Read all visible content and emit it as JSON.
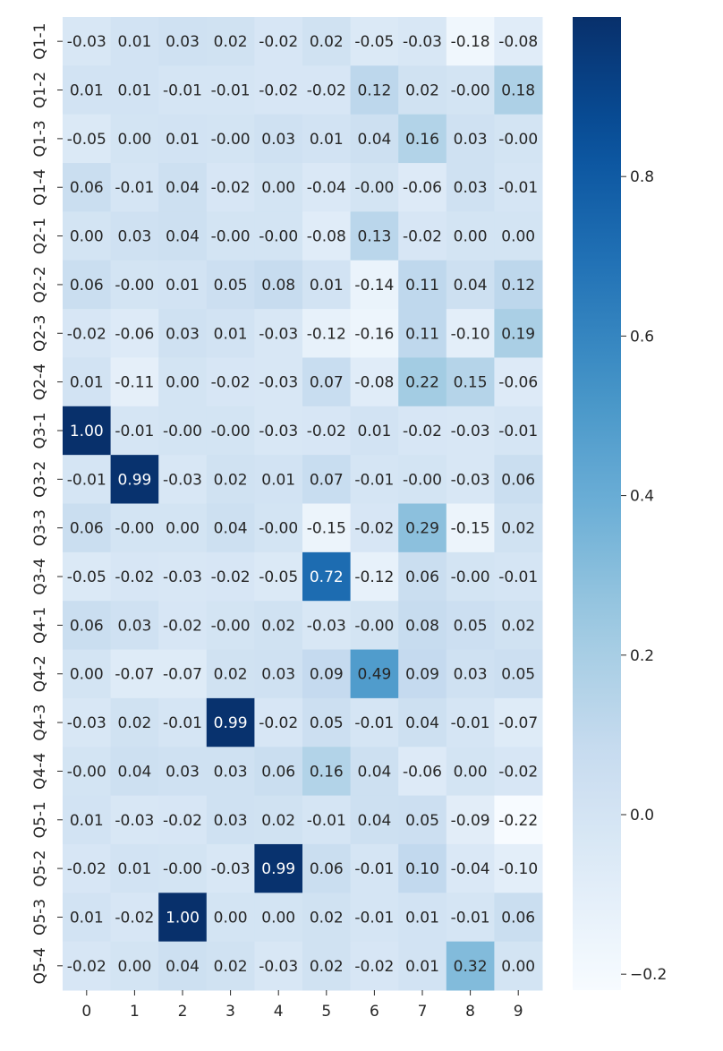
{
  "chart_data": {
    "type": "heatmap",
    "title": "",
    "xlabel": "",
    "ylabel": "",
    "x_categories": [
      "0",
      "1",
      "2",
      "3",
      "4",
      "5",
      "6",
      "7",
      "8",
      "9"
    ],
    "y_categories": [
      "Q1-1",
      "Q1-2",
      "Q1-3",
      "Q1-4",
      "Q2-1",
      "Q2-2",
      "Q2-3",
      "Q2-4",
      "Q3-1",
      "Q3-2",
      "Q3-3",
      "Q3-4",
      "Q4-1",
      "Q4-2",
      "Q4-3",
      "Q4-4",
      "Q5-1",
      "Q5-2",
      "Q5-3",
      "Q5-4"
    ],
    "values": [
      [
        -0.03,
        0.01,
        0.03,
        0.02,
        -0.02,
        0.02,
        -0.05,
        -0.03,
        -0.18,
        -0.08
      ],
      [
        0.01,
        0.01,
        -0.01,
        -0.01,
        -0.02,
        -0.02,
        0.12,
        0.02,
        -0.0,
        0.18
      ],
      [
        -0.05,
        0.0,
        0.01,
        -0.0,
        0.03,
        0.01,
        0.04,
        0.16,
        0.03,
        -0.0
      ],
      [
        0.06,
        -0.01,
        0.04,
        -0.02,
        0.0,
        -0.04,
        -0.0,
        -0.06,
        0.03,
        -0.01
      ],
      [
        0.0,
        0.03,
        0.04,
        -0.0,
        -0.0,
        -0.08,
        0.13,
        -0.02,
        0.0,
        0.0
      ],
      [
        0.06,
        -0.0,
        0.01,
        0.05,
        0.08,
        0.01,
        -0.14,
        0.11,
        0.04,
        0.12
      ],
      [
        -0.02,
        -0.06,
        0.03,
        0.01,
        -0.03,
        -0.12,
        -0.16,
        0.11,
        -0.1,
        0.19
      ],
      [
        0.01,
        -0.11,
        0.0,
        -0.02,
        -0.03,
        0.07,
        -0.08,
        0.22,
        0.15,
        -0.06
      ],
      [
        1.0,
        -0.01,
        -0.0,
        -0.0,
        -0.03,
        -0.02,
        0.01,
        -0.02,
        -0.03,
        -0.01
      ],
      [
        -0.01,
        0.99,
        -0.03,
        0.02,
        0.01,
        0.07,
        -0.01,
        -0.0,
        -0.03,
        0.06
      ],
      [
        0.06,
        -0.0,
        0.0,
        0.04,
        -0.0,
        -0.15,
        -0.02,
        0.29,
        -0.15,
        0.02
      ],
      [
        -0.05,
        -0.02,
        -0.03,
        -0.02,
        -0.05,
        0.72,
        -0.12,
        0.06,
        -0.0,
        -0.01
      ],
      [
        0.06,
        0.03,
        -0.02,
        -0.0,
        0.02,
        -0.03,
        -0.0,
        0.08,
        0.05,
        0.02
      ],
      [
        0.0,
        -0.07,
        -0.07,
        0.02,
        0.03,
        0.09,
        0.49,
        0.09,
        0.03,
        0.05
      ],
      [
        -0.03,
        0.02,
        -0.01,
        0.99,
        -0.02,
        0.05,
        -0.01,
        0.04,
        -0.01,
        -0.07
      ],
      [
        -0.0,
        0.04,
        0.03,
        0.03,
        0.06,
        0.16,
        0.04,
        -0.06,
        0.0,
        -0.02
      ],
      [
        0.01,
        -0.03,
        -0.02,
        0.03,
        0.02,
        -0.01,
        0.04,
        0.05,
        -0.09,
        -0.22
      ],
      [
        -0.02,
        0.01,
        -0.0,
        -0.03,
        0.99,
        0.06,
        -0.01,
        0.1,
        -0.04,
        -0.1
      ],
      [
        0.01,
        -0.02,
        1.0,
        0.0,
        0.0,
        0.02,
        -0.01,
        0.01,
        -0.01,
        0.06
      ],
      [
        -0.02,
        0.0,
        0.04,
        0.02,
        -0.03,
        0.02,
        -0.02,
        0.01,
        0.32,
        0.0
      ]
    ],
    "colormap": "Blues",
    "vmin": -0.22,
    "vmax": 1.0,
    "colorbar_ticks": [
      "0.8",
      "0.6",
      "0.4",
      "0.2",
      "0.0",
      "−0.2"
    ],
    "colorbar_tick_values": [
      0.8,
      0.6,
      0.4,
      0.2,
      0.0,
      -0.2
    ],
    "annotation_format": "2 decimals",
    "grid": false,
    "legend": "colorbar-right"
  }
}
